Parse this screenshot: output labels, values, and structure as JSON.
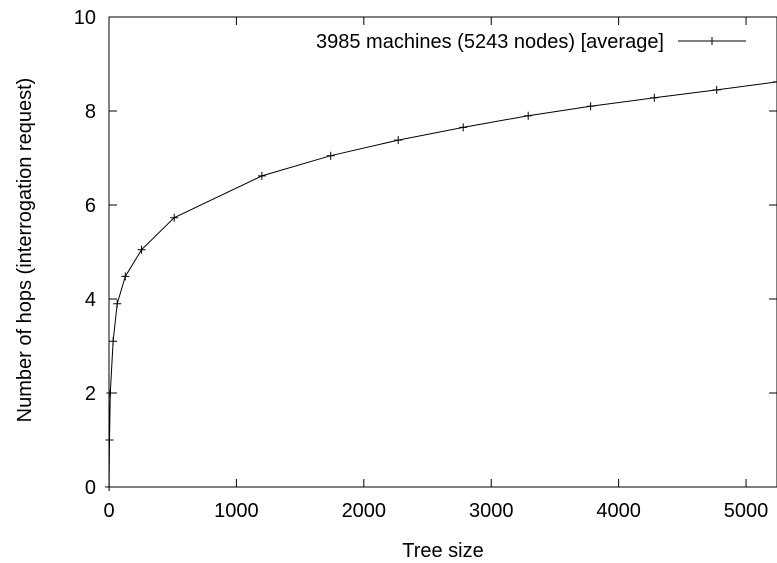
{
  "chart_data": {
    "type": "line",
    "title": "",
    "xlabel": "Tree size",
    "ylabel": "Number of hops  (interrogation request)",
    "xlim": [
      0,
      5243
    ],
    "ylim": [
      0,
      10
    ],
    "xticks": [
      0,
      1000,
      2000,
      3000,
      4000,
      5000
    ],
    "yticks": [
      0,
      2,
      4,
      6,
      8,
      10
    ],
    "grid": false,
    "legend_position": "top-right",
    "series": [
      {
        "name": "3985 machines (5243 nodes) [average]",
        "color": "#000000",
        "marker": "plus",
        "x": [
          1,
          4,
          10,
          32,
          64,
          128,
          256,
          512,
          1200,
          1740,
          2270,
          2780,
          3290,
          3780,
          4280,
          4770,
          5243
        ],
        "y": [
          0,
          1.0,
          2.0,
          3.1,
          3.9,
          4.48,
          5.05,
          5.73,
          6.62,
          7.05,
          7.38,
          7.65,
          7.9,
          8.1,
          8.28,
          8.45,
          8.62
        ]
      }
    ]
  }
}
